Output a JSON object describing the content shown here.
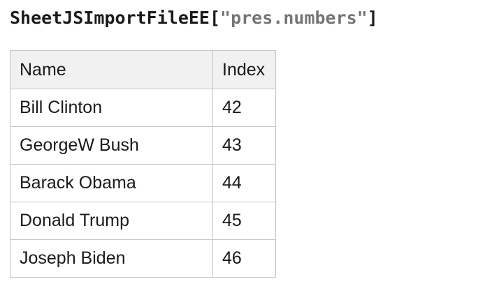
{
  "title": {
    "prefix": "SheetJSImportFileEE[",
    "filename": "\"pres.numbers\"",
    "suffix": "]"
  },
  "colors": {
    "title_text": "#1a1a1a",
    "title_filename_gray": "#757575",
    "table_border": "#c5c5c5",
    "header_background": "#f1f1f1",
    "table_text": "#1a1a1a",
    "page_background": "#ffffff"
  },
  "table": {
    "columns": [
      "Name",
      "Index"
    ],
    "rows": [
      {
        "name": "Bill Clinton",
        "index": "42"
      },
      {
        "name": "GeorgeW Bush",
        "index": "43"
      },
      {
        "name": "Barack Obama",
        "index": "44"
      },
      {
        "name": "Donald Trump",
        "index": "45"
      },
      {
        "name": "Joseph Biden",
        "index": "46"
      }
    ]
  }
}
